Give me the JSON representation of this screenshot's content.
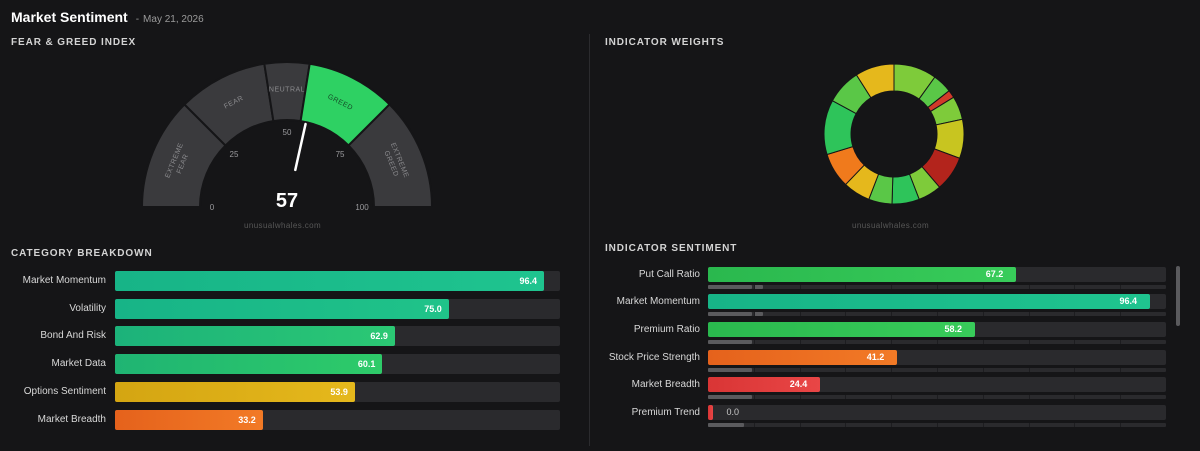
{
  "header": {
    "title": "Market Sentiment",
    "separator": "-",
    "date": "May 21, 2026"
  },
  "fear_greed": {
    "section_title": "FEAR & GREED INDEX",
    "value": 57,
    "value_label": "57",
    "segments": [
      {
        "label": "EXTREME FEAR",
        "lines": [
          "EXTREME",
          "FEAR"
        ],
        "from": 0,
        "to": 25,
        "color": "#3a3a3d"
      },
      {
        "label": "FEAR",
        "lines": [
          "FEAR"
        ],
        "from": 25,
        "to": 45,
        "color": "#3a3a3d"
      },
      {
        "label": "NEUTRAL",
        "lines": [
          "NEUTRAL"
        ],
        "from": 45,
        "to": 55,
        "color": "#3a3a3d"
      },
      {
        "label": "GREED",
        "lines": [
          "GREED"
        ],
        "from": 55,
        "to": 75,
        "color": "#2ed163"
      },
      {
        "label": "EXTREME GREED",
        "lines": [
          "EXTREME",
          "GREED"
        ],
        "from": 75,
        "to": 100,
        "color": "#3a3a3d"
      }
    ],
    "ticks": [
      {
        "value": 0,
        "label": "0"
      },
      {
        "value": 25,
        "label": "25"
      },
      {
        "value": 50,
        "label": "50"
      },
      {
        "value": 75,
        "label": "75"
      },
      {
        "value": 100,
        "label": "100"
      }
    ],
    "watermark": "unusualwhales.com"
  },
  "category_breakdown": {
    "section_title": "CATEGORY BREAKDOWN",
    "items": [
      {
        "label": "Market Momentum",
        "value": 96.4,
        "value_label": "96.4",
        "color_start": "#17b487",
        "color_end": "#1fc48f"
      },
      {
        "label": "Volatility",
        "value": 75.0,
        "value_label": "75.0",
        "color_start": "#17b487",
        "color_end": "#20c389"
      },
      {
        "label": "Bond And Risk",
        "value": 62.9,
        "value_label": "62.9",
        "color_start": "#1cb27a",
        "color_end": "#2bc874"
      },
      {
        "label": "Market Data",
        "value": 60.1,
        "value_label": "60.1",
        "color_start": "#1fb473",
        "color_end": "#2ecb69"
      },
      {
        "label": "Options Sentiment",
        "value": 53.9,
        "value_label": "53.9",
        "color_start": "#d4a512",
        "color_end": "#e5b81c"
      },
      {
        "label": "Market Breadth",
        "value": 33.2,
        "value_label": "33.2",
        "color_start": "#e5621c",
        "color_end": "#f27a26"
      }
    ]
  },
  "indicator_weights": {
    "section_title": "INDICATOR WEIGHTS",
    "watermark": "unusualwhales.com",
    "slices": [
      {
        "weight": 11,
        "color": "#7ecb3a"
      },
      {
        "weight": 5,
        "color": "#5ac747"
      },
      {
        "weight": 2,
        "color": "#d23a2a"
      },
      {
        "weight": 6,
        "color": "#7ecb3a"
      },
      {
        "weight": 10,
        "color": "#c8c520"
      },
      {
        "weight": 9,
        "color": "#b3241c"
      },
      {
        "weight": 6,
        "color": "#7ecb3a"
      },
      {
        "weight": 7,
        "color": "#2ec45a"
      },
      {
        "weight": 6,
        "color": "#5ac747"
      },
      {
        "weight": 7,
        "color": "#e5b81c"
      },
      {
        "weight": 9,
        "color": "#f07a1c"
      },
      {
        "weight": 14,
        "color": "#2ec45a"
      },
      {
        "weight": 9,
        "color": "#5ac747"
      },
      {
        "weight": 10,
        "color": "#e5b81c"
      }
    ]
  },
  "indicator_sentiment": {
    "section_title": "INDICATOR SENTIMENT",
    "items": [
      {
        "label": "Put Call Ratio",
        "value": 67.2,
        "value_label": "67.2",
        "color_start": "#2ab84e",
        "color_end": "#38cc5a",
        "sub": [
          0.0,
          0.095,
          0.1,
          0.12
        ]
      },
      {
        "label": "Market Momentum",
        "value": 96.4,
        "value_label": "96.4",
        "color_start": "#17b487",
        "color_end": "#1fc48f",
        "sub": [
          0.0,
          0.095,
          0.1,
          0.12
        ]
      },
      {
        "label": "Premium Ratio",
        "value": 58.2,
        "value_label": "58.2",
        "color_start": "#2ab84e",
        "color_end": "#38cc5a",
        "sub": [
          0.0,
          0.095
        ]
      },
      {
        "label": "Stock Price Strength",
        "value": 41.2,
        "value_label": "41.2",
        "color_start": "#e5621c",
        "color_end": "#f27a26",
        "sub": [
          0.0,
          0.095
        ]
      },
      {
        "label": "Market Breadth",
        "value": 24.4,
        "value_label": "24.4",
        "color_start": "#d93535",
        "color_end": "#e94646",
        "sub": [
          0.0,
          0.095
        ]
      },
      {
        "label": "Premium Trend",
        "value": 0.0,
        "value_label": "0.0",
        "color_start": "#d93535",
        "color_end": "#e94646",
        "sub": [
          0.0,
          0.078
        ]
      }
    ]
  }
}
